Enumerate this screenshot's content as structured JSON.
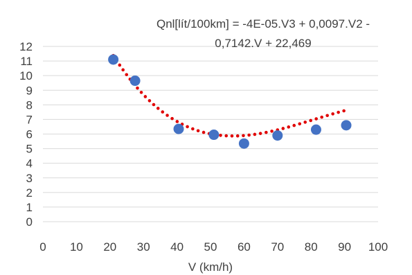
{
  "chart_data": {
    "type": "scatter",
    "title": "",
    "xlabel": "V (km/h)",
    "ylabel": "",
    "xlim": [
      0,
      100
    ],
    "ylim": [
      0,
      12
    ],
    "x_ticks": [
      "0",
      "10",
      "20",
      "30",
      "40",
      "50",
      "60",
      "70",
      "80",
      "90",
      "100"
    ],
    "y_ticks": [
      "0",
      "1",
      "2",
      "3",
      "4",
      "5",
      "6",
      "7",
      "8",
      "9",
      "10",
      "11",
      "12"
    ],
    "grid": "horizontal",
    "series": [
      {
        "points": [
          {
            "x": 21,
            "y": 11.1
          },
          {
            "x": 27.5,
            "y": 9.65
          },
          {
            "x": 40.5,
            "y": 6.35
          },
          {
            "x": 51,
            "y": 5.95
          },
          {
            "x": 60,
            "y": 5.35
          },
          {
            "x": 70,
            "y": 5.9
          },
          {
            "x": 81.5,
            "y": 6.3
          },
          {
            "x": 90.5,
            "y": 6.6
          }
        ],
        "color": "#4472C4"
      }
    ],
    "trendline": {
      "type": "polynomial",
      "order": 3,
      "coefficients": [
        -4e-05,
        0.0097,
        -0.7142,
        22.469
      ],
      "x_range": [
        21,
        90.5
      ],
      "color": "#E00000",
      "style": "dotted"
    },
    "equation_lines": [
      "Qnl[lít/100km] = -4E-05.V3 + 0,0097.V2 -",
      "0,7142.V + 22,469"
    ]
  }
}
